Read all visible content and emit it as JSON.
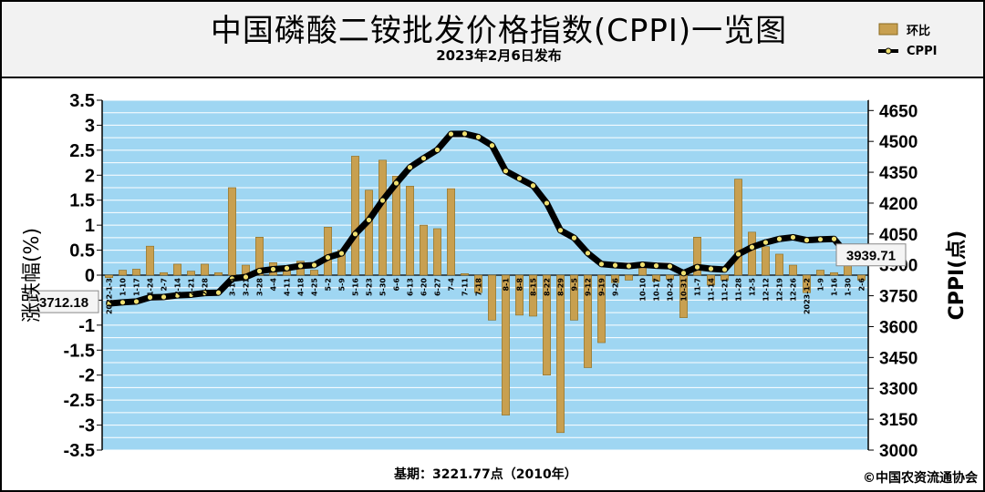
{
  "header": {
    "title": "中国磷酸二铵批发价格指数(CPPI)一览图",
    "subtitle": "2023年2月6日发布"
  },
  "legend": {
    "bar_label": "环比",
    "line_label": "CPPI"
  },
  "footer": {
    "base_text": "基期：3221.77点（2010年）",
    "copyright": "©中国农资流通协会"
  },
  "colors": {
    "plot_bg": "#9fd6f2",
    "grid": "#ffffff",
    "bar_fill": "#c8a050",
    "bar_edge": "#8a6a20",
    "line": "#000000",
    "marker": "#f0e070"
  },
  "chart_data": {
    "type": "bar+line",
    "left_axis": {
      "label": "涨跌幅(%)",
      "ylim": [
        -3.5,
        3.5
      ],
      "ticks": [
        "3.5",
        "3",
        "2.5",
        "2",
        "1.5",
        "1",
        "0.5",
        "0",
        "-0.5",
        "-1",
        "-1.5",
        "-2",
        "-2.5",
        "-3",
        "-3.5"
      ]
    },
    "right_axis": {
      "label": "CPPI(点)",
      "ylim": [
        3000,
        4700
      ],
      "ticks": [
        "4650",
        "4500",
        "4350",
        "4200",
        "4050",
        "3900",
        "3750",
        "3600",
        "3450",
        "3300",
        "3150",
        "3000"
      ]
    },
    "categories": [
      "2022-1-3",
      "1-10",
      "1-17",
      "1-24",
      "2-7",
      "2-14",
      "2-21",
      "2-28",
      "3-7",
      "3-14",
      "3-21",
      "3-28",
      "4-4",
      "4-11",
      "4-18",
      "4-25",
      "5-2",
      "5-9",
      "5-16",
      "5-23",
      "5-30",
      "6-6",
      "6-13",
      "6-20",
      "6-27",
      "7-4",
      "7-11",
      "7-18",
      "7-25",
      "8-1",
      "8-8",
      "8-15",
      "8-22",
      "8-29",
      "9-5",
      "9-12",
      "9-19",
      "9-26",
      "10-3",
      "10-10",
      "10-17",
      "10-24",
      "10-31",
      "11-7",
      "11-14",
      "11-21",
      "11-28",
      "12-5",
      "12-12",
      "12-19",
      "12-26",
      "2023-1-2",
      "1-9",
      "1-16",
      "1-30",
      "2-6"
    ],
    "tick_labels": [
      "2022-1-3",
      "1-10",
      "1-17",
      "1-24",
      "2-7",
      "2-14",
      "2-21",
      "2-28",
      "3-14",
      "3-21",
      "3-28",
      "4-4",
      "4-11",
      "4-18",
      "4-25",
      "5-2",
      "5-9",
      "5-16",
      "5-23",
      "5-30",
      "6-6",
      "6-13",
      "6-20",
      "6-27",
      "7-4",
      "7-11",
      "7-18",
      "8-1",
      "8-8",
      "8-15",
      "8-22",
      "8-29",
      "9-5",
      "9-12",
      "9-19",
      "9-26",
      "10-10",
      "10-17",
      "10-24",
      "10-31",
      "11-7",
      "11-14",
      "11-21",
      "11-28",
      "12-5",
      "12-12",
      "12-19",
      "12-26",
      "2023-1-2",
      "1-9",
      "1-16",
      "1-30",
      "2-6"
    ],
    "series": [
      {
        "name": "环比",
        "type": "bar",
        "axis": "left",
        "values": [
          -0.05,
          0.1,
          0.12,
          0.58,
          0.05,
          0.22,
          0.08,
          0.22,
          0.05,
          1.75,
          0.2,
          0.76,
          0.25,
          0.12,
          0.28,
          0.1,
          0.96,
          0.5,
          2.38,
          1.7,
          2.3,
          1.98,
          1.78,
          1.0,
          0.93,
          1.73,
          0.03,
          -0.35,
          -0.9,
          -2.8,
          -0.8,
          -0.82,
          -2.0,
          -3.15,
          -0.9,
          -1.85,
          -1.35,
          -0.15,
          -0.1,
          0.18,
          -0.12,
          -0.08,
          -0.85,
          0.76,
          -0.2,
          -0.1,
          1.92,
          0.86,
          0.57,
          0.42,
          0.2,
          -0.35,
          0.1,
          0.05,
          0.52,
          -0.1
        ]
      },
      {
        "name": "CPPI",
        "type": "line",
        "axis": "right",
        "values": [
          3712.18,
          3718,
          3722,
          3742,
          3744,
          3752,
          3755,
          3763,
          3765,
          3833,
          3841,
          3870,
          3879,
          3884,
          3895,
          3899,
          3936,
          3956,
          4050,
          4118,
          4213,
          4297,
          4374,
          4418,
          4459,
          4536,
          4537,
          4521,
          4480,
          4356,
          4320,
          4285,
          4200,
          4068,
          4031,
          3957,
          3904,
          3898,
          3894,
          3901,
          3896,
          3893,
          3860,
          3889,
          3881,
          3877,
          3952,
          3986,
          4009,
          4026,
          4034,
          4020,
          4024,
          4026,
          3947,
          3939.71
        ]
      }
    ],
    "annotations": [
      {
        "text": "3712.18",
        "category": "2022-1-3"
      },
      {
        "text": "3939.71",
        "category": "2-6"
      }
    ]
  }
}
